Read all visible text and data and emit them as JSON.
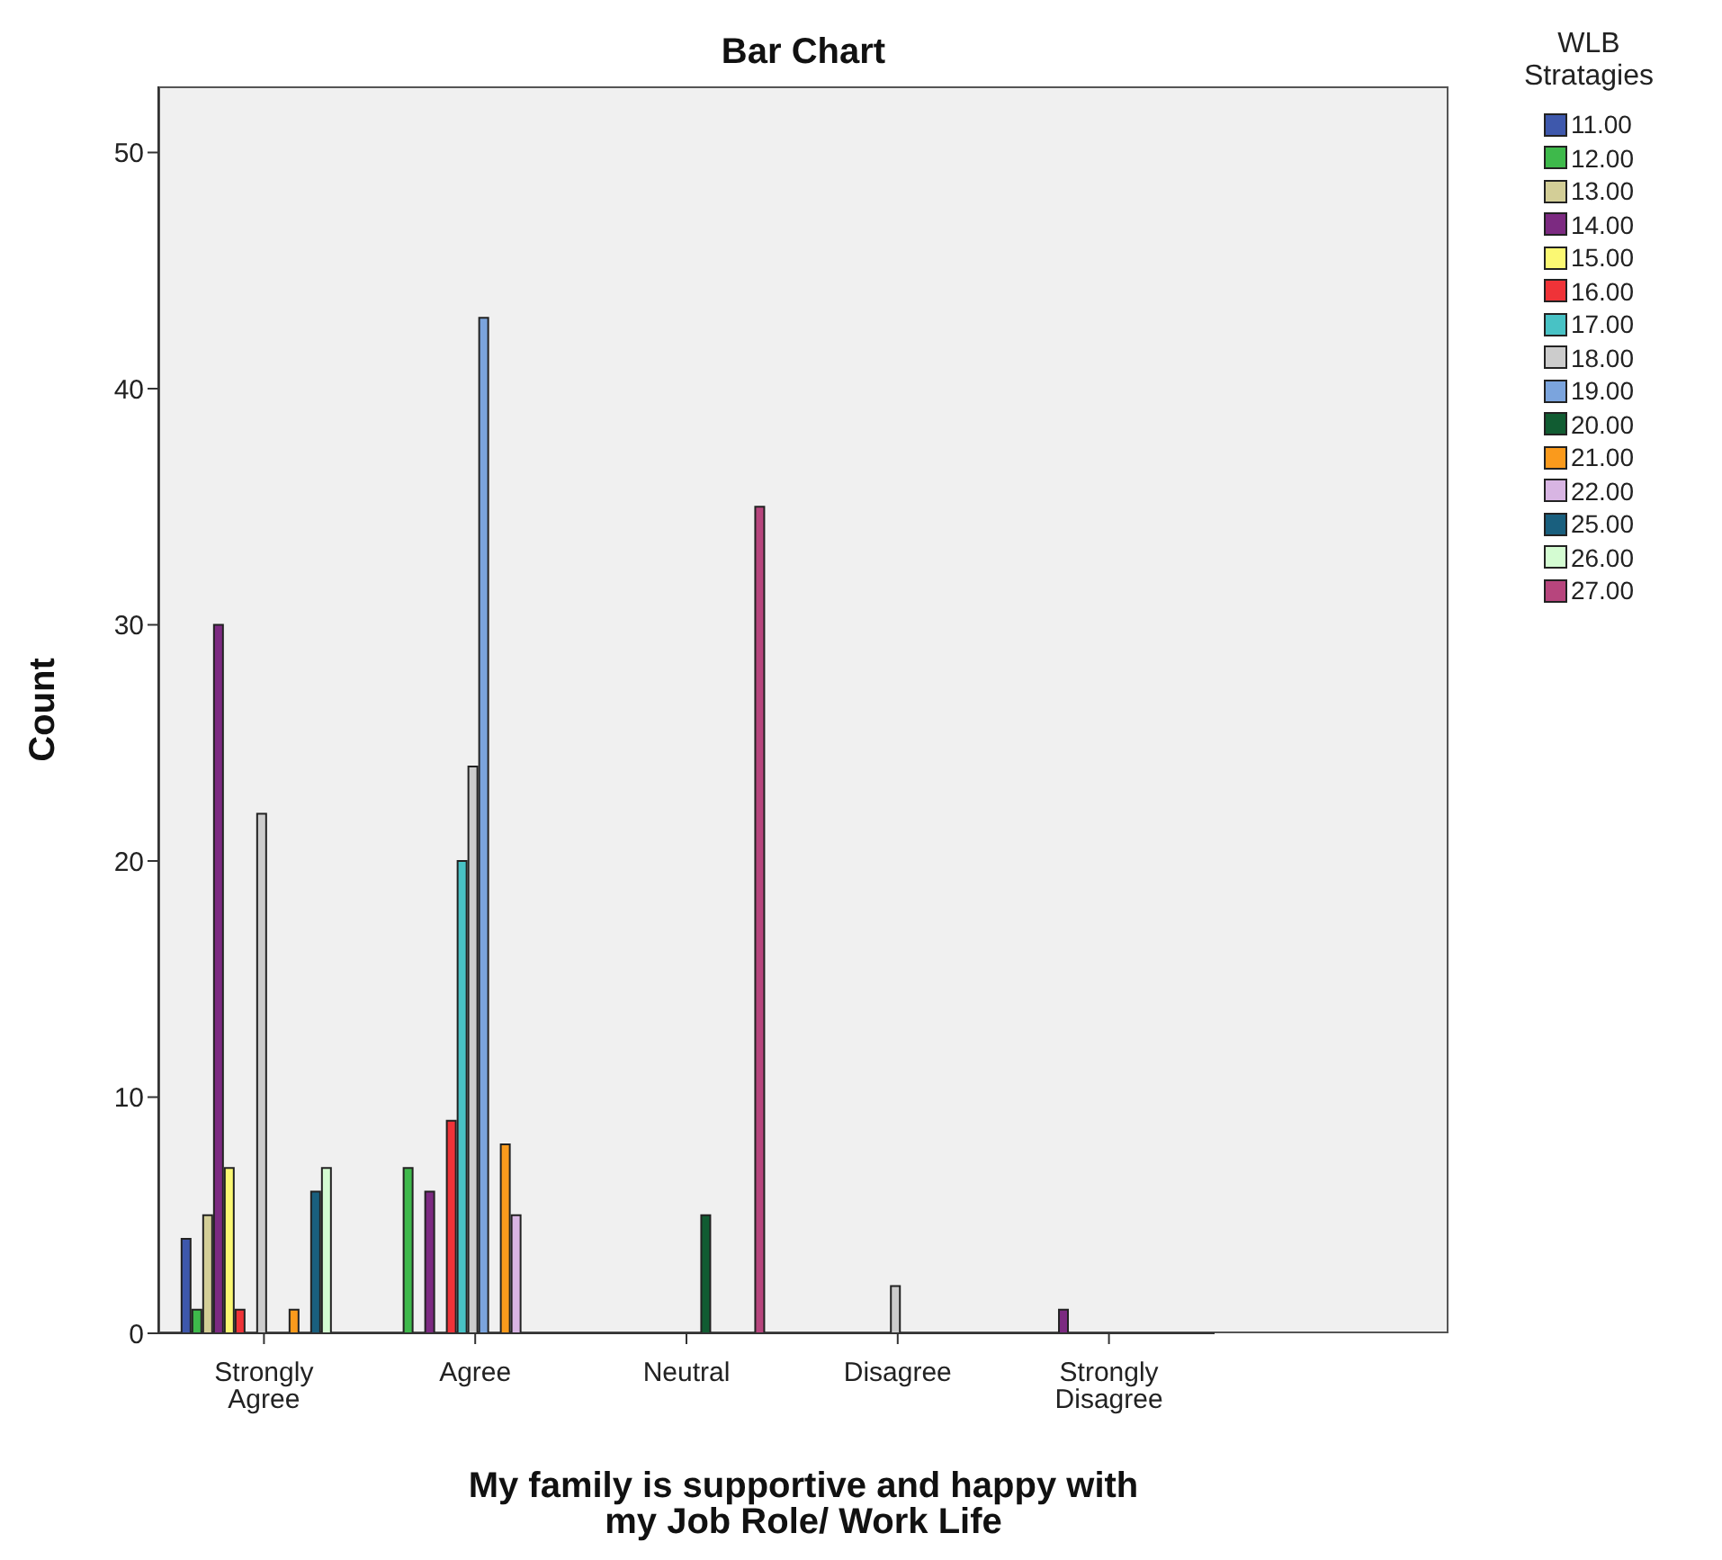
{
  "chart_data": {
    "type": "bar",
    "title": "Bar Chart",
    "xlabel": "My family is supportive and happy with my Job Role/ Work Life",
    "ylabel": "Count",
    "legend_title": "WLB Stratagies",
    "categories": [
      "Strongly Agree",
      "Agree",
      "Neutral",
      "Disagree",
      "Strongly Disagree"
    ],
    "series": [
      {
        "name": "11.00",
        "color": "#3e58ac",
        "values": [
          4,
          null,
          null,
          null,
          null
        ]
      },
      {
        "name": "12.00",
        "color": "#3eb94b",
        "values": [
          1,
          7,
          null,
          null,
          null
        ]
      },
      {
        "name": "13.00",
        "color": "#d3ce97",
        "values": [
          5,
          null,
          null,
          null,
          null
        ]
      },
      {
        "name": "14.00",
        "color": "#7c2a81",
        "values": [
          30,
          6,
          null,
          null,
          1
        ]
      },
      {
        "name": "15.00",
        "color": "#fbf873",
        "values": [
          7,
          null,
          null,
          null,
          null
        ]
      },
      {
        "name": "16.00",
        "color": "#ef3338",
        "values": [
          1,
          9,
          null,
          null,
          null
        ]
      },
      {
        "name": "17.00",
        "color": "#48c2c5",
        "values": [
          null,
          20,
          null,
          null,
          null
        ]
      },
      {
        "name": "18.00",
        "color": "#cccccc",
        "values": [
          22,
          24,
          null,
          2,
          null
        ]
      },
      {
        "name": "19.00",
        "color": "#7ba4dd",
        "values": [
          null,
          43,
          null,
          null,
          null
        ]
      },
      {
        "name": "20.00",
        "color": "#115c32",
        "values": [
          null,
          null,
          5,
          null,
          null
        ]
      },
      {
        "name": "21.00",
        "color": "#fa9a1c",
        "values": [
          1,
          8,
          null,
          null,
          null
        ]
      },
      {
        "name": "22.00",
        "color": "#d8b5e3",
        "values": [
          null,
          5,
          null,
          null,
          null
        ]
      },
      {
        "name": "25.00",
        "color": "#195f7e",
        "values": [
          6,
          null,
          null,
          null,
          null
        ]
      },
      {
        "name": "26.00",
        "color": "#d4fcd2",
        "values": [
          7,
          null,
          null,
          null,
          null
        ]
      },
      {
        "name": "27.00",
        "color": "#b7457d",
        "values": [
          null,
          null,
          35,
          null,
          null
        ]
      }
    ],
    "ylim": [
      0,
      52.8
    ],
    "yticks": [
      0,
      10,
      20,
      30,
      40,
      50
    ],
    "legend": "right"
  }
}
